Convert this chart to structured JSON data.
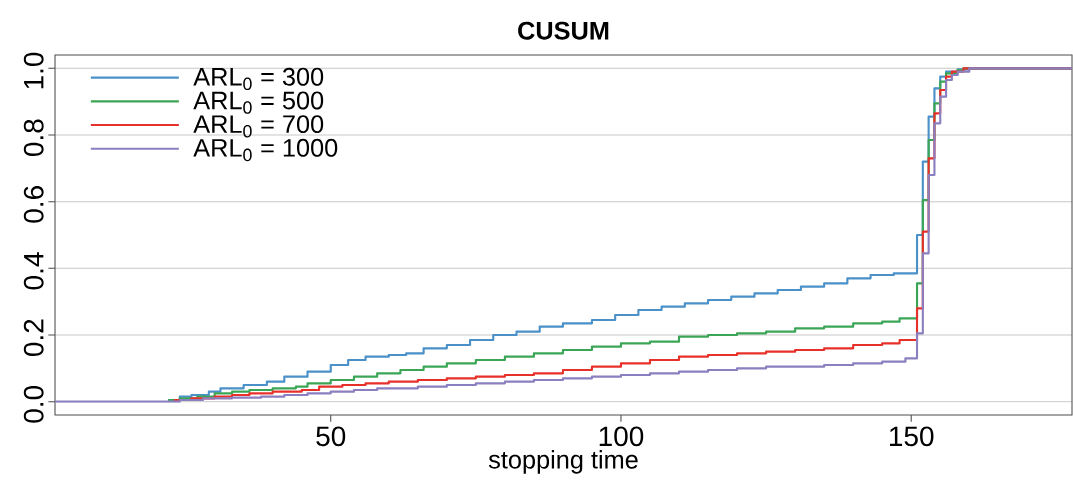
{
  "chart_data": {
    "type": "step",
    "title": "CUSUM",
    "xlabel": "stopping time",
    "xlim": [
      2.5,
      177.7
    ],
    "ylim": [
      -0.04,
      1.04
    ],
    "xticks": [
      50,
      100,
      150
    ],
    "yticks": [
      {
        "value": 0,
        "label": "0.0"
      },
      0.2,
      0.4,
      0.6,
      0.8,
      {
        "value": 1,
        "label": "1.0"
      }
    ],
    "grid": "y",
    "legend": "top left",
    "marker": "none",
    "series": [
      {
        "name": "ARL$_{0}$ = 300",
        "color": "#4a90c9",
        "x": [
          22,
          24,
          26,
          29,
          31,
          35,
          39,
          42,
          46,
          50,
          53,
          56,
          60,
          63,
          66,
          70,
          74,
          78,
          82,
          86,
          90,
          95,
          99,
          103,
          107,
          111,
          115,
          119,
          123,
          127,
          131,
          135,
          139,
          143,
          147,
          151,
          152,
          153,
          154,
          155,
          156,
          158,
          160,
          177.7
        ],
        "values": [
          0.005,
          0.015,
          0.02,
          0.03,
          0.04,
          0.05,
          0.06,
          0.075,
          0.09,
          0.11,
          0.125,
          0.135,
          0.14,
          0.145,
          0.16,
          0.17,
          0.185,
          0.2,
          0.21,
          0.225,
          0.235,
          0.245,
          0.26,
          0.275,
          0.285,
          0.295,
          0.305,
          0.315,
          0.325,
          0.335,
          0.345,
          0.355,
          0.37,
          0.38,
          0.385,
          0.5,
          0.72,
          0.855,
          0.94,
          0.975,
          0.99,
          0.997,
          1,
          1
        ]
      },
      {
        "name": "ARL$_{0}$ = 500",
        "color": "#3aa655",
        "x": [
          22,
          24,
          27,
          30,
          33,
          36,
          40,
          44,
          46,
          50,
          54,
          58,
          62,
          66,
          70,
          75,
          80,
          85,
          90,
          95,
          100,
          105,
          110,
          115,
          120,
          125,
          130,
          135,
          140,
          145,
          148,
          151,
          152,
          153,
          154,
          155,
          156,
          158,
          159,
          177.7
        ],
        "values": [
          0.005,
          0.01,
          0.015,
          0.025,
          0.03,
          0.035,
          0.04,
          0.045,
          0.055,
          0.065,
          0.075,
          0.085,
          0.095,
          0.105,
          0.115,
          0.125,
          0.135,
          0.145,
          0.155,
          0.165,
          0.175,
          0.18,
          0.195,
          0.2,
          0.205,
          0.21,
          0.22,
          0.225,
          0.235,
          0.24,
          0.25,
          0.355,
          0.605,
          0.785,
          0.895,
          0.96,
          0.985,
          0.995,
          1,
          1
        ]
      },
      {
        "name": "ARL$_{0}$ = 700",
        "color": "#e8302a",
        "x": [
          23,
          26,
          30,
          33,
          36,
          40,
          45,
          48,
          52,
          56,
          60,
          65,
          70,
          75,
          80,
          85,
          90,
          95,
          100,
          105,
          110,
          115,
          120,
          125,
          130,
          135,
          140,
          145,
          148,
          151,
          152,
          153,
          154,
          155,
          156,
          157,
          159,
          177.7
        ],
        "values": [
          0.005,
          0.01,
          0.015,
          0.02,
          0.025,
          0.03,
          0.035,
          0.045,
          0.05,
          0.055,
          0.06,
          0.065,
          0.07,
          0.075,
          0.08,
          0.085,
          0.095,
          0.105,
          0.115,
          0.125,
          0.135,
          0.14,
          0.145,
          0.15,
          0.155,
          0.16,
          0.17,
          0.175,
          0.185,
          0.28,
          0.51,
          0.73,
          0.865,
          0.935,
          0.975,
          0.99,
          1,
          1
        ]
      },
      {
        "name": "ARL$_{0}$ = 1000",
        "color": "#8b7fc0",
        "x": [
          2.5,
          20,
          24,
          28,
          33,
          38,
          42,
          46,
          50,
          54,
          58,
          65,
          70,
          75,
          80,
          85,
          90,
          95,
          100,
          105,
          110,
          115,
          120,
          125,
          130,
          135,
          140,
          145,
          149,
          151,
          152,
          153,
          154,
          155,
          156,
          157,
          158,
          160,
          177.7
        ],
        "values": [
          0,
          0,
          0.005,
          0.01,
          0.012,
          0.015,
          0.02,
          0.025,
          0.03,
          0.035,
          0.04,
          0.045,
          0.05,
          0.055,
          0.06,
          0.065,
          0.07,
          0.075,
          0.08,
          0.085,
          0.09,
          0.095,
          0.1,
          0.105,
          0.105,
          0.11,
          0.115,
          0.12,
          0.13,
          0.205,
          0.445,
          0.68,
          0.835,
          0.915,
          0.965,
          0.98,
          0.99,
          1,
          1
        ]
      }
    ]
  }
}
